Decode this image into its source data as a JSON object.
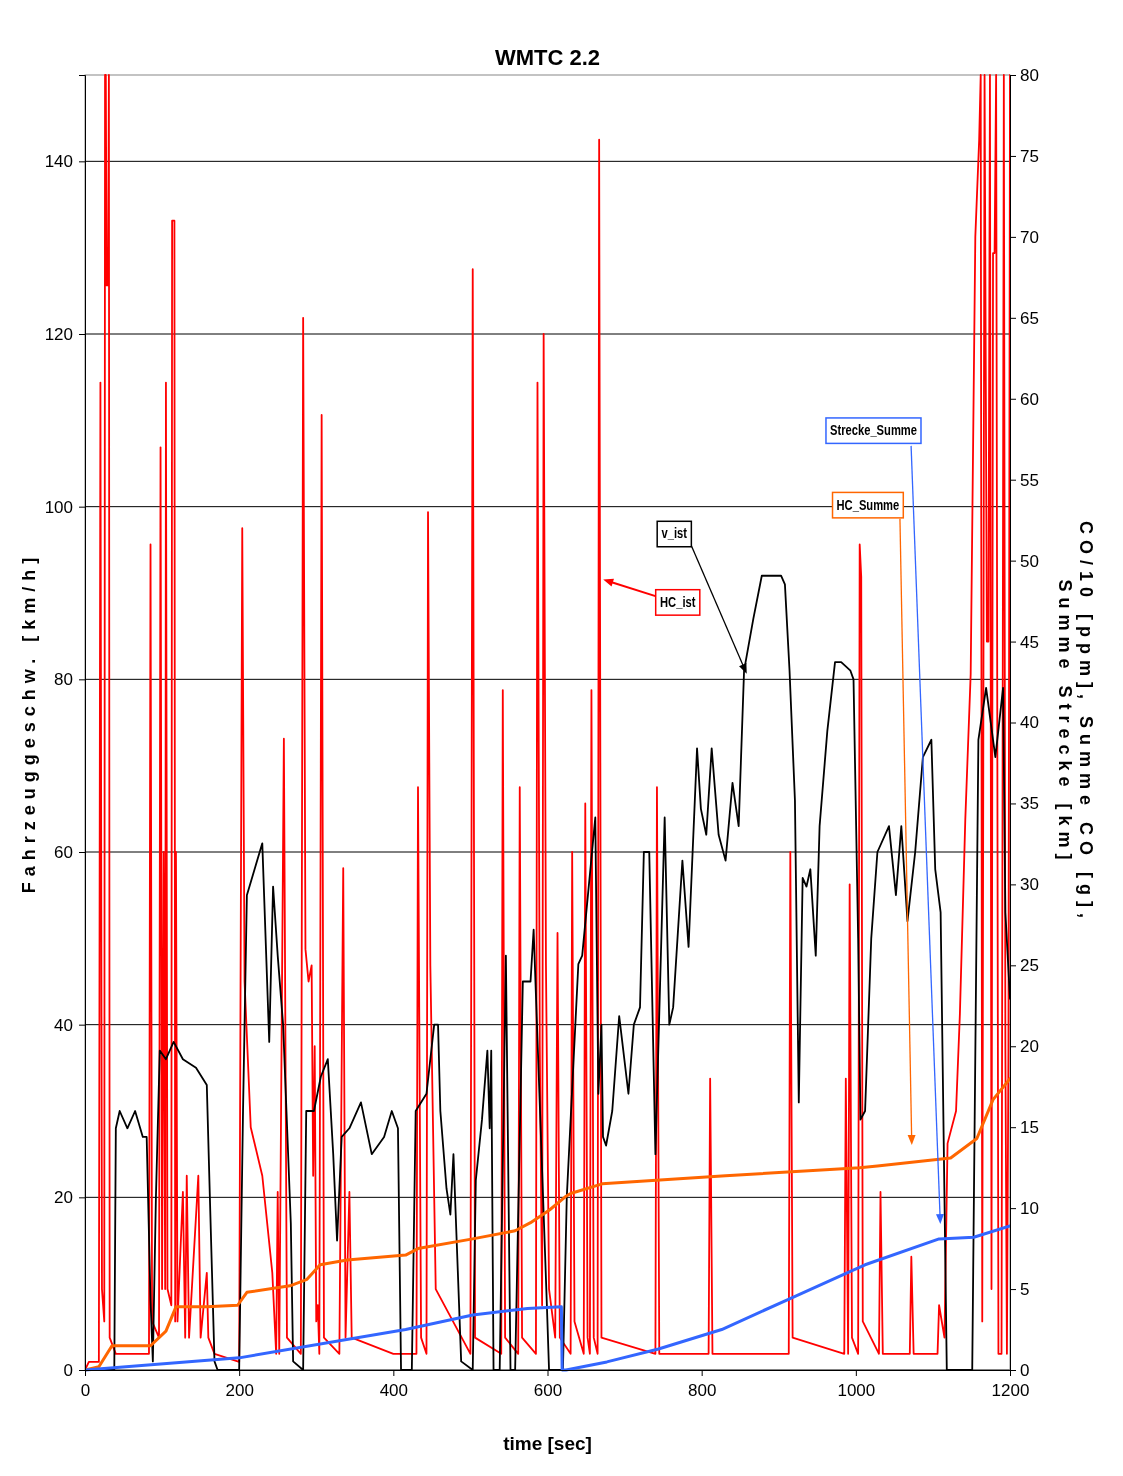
{
  "chart_data": {
    "type": "line",
    "title": "WMTC 2.2",
    "xlabel": "time [sec]",
    "ylabel": "Fahrzeuggeschw. [km/h]",
    "y2label": "CO/10 [ppm], Summe CO [g], Summe Strecke [km]",
    "xlim": [
      0,
      1200
    ],
    "xticks": [
      0,
      200,
      400,
      600,
      800,
      1000,
      1200
    ],
    "ylim": [
      0,
      150
    ],
    "yticks": [
      0,
      20,
      40,
      60,
      80,
      100,
      120,
      140
    ],
    "y2lim": [
      0,
      80
    ],
    "y2ticks": [
      0,
      5,
      10,
      15,
      20,
      25,
      30,
      35,
      40,
      45,
      50,
      55,
      60,
      65,
      70,
      75,
      80
    ],
    "grid": "y",
    "series": [
      {
        "name": "v_ist",
        "color": "#000000",
        "x": [
          0,
          38,
          40,
          45,
          55,
          65,
          75,
          80,
          85,
          88,
          92,
          97,
          105,
          115,
          127,
          144,
          158,
          162,
          168,
          172,
          200,
          205,
          210,
          220,
          230,
          239,
          244,
          250,
          257,
          267,
          270,
          283,
          287,
          297,
          306,
          315,
          322,
          327,
          333,
          343,
          358,
          372,
          388,
          398,
          406,
          410,
          424,
          429,
          443,
          453,
          458,
          461,
          469,
          474,
          478,
          488,
          503,
          507,
          515,
          522,
          525,
          527,
          530,
          538,
          546,
          552,
          558,
          568,
          578,
          582,
          599,
          602,
          620,
          625,
          640,
          645,
          662,
          666,
          670,
          672,
          676,
          684,
          693,
          705,
          712,
          720,
          725,
          732,
          740,
          752,
          758,
          763,
          775,
          783,
          794,
          799,
          806,
          813,
          822,
          831,
          840,
          848,
          855,
          867,
          878,
          903,
          908,
          914,
          921,
          926,
          931,
          936,
          941,
          948,
          953,
          963,
          973,
          981,
          993,
          997,
          1003,
          1006,
          1012,
          1020,
          1028,
          1043,
          1052,
          1059,
          1067,
          1077,
          1087,
          1098,
          1103,
          1110,
          1118,
          1151,
          1159,
          1169,
          1181,
          1191,
          1194,
          1200
        ],
        "values": [
          0,
          0,
          28,
          30,
          28,
          30,
          27,
          27,
          8,
          1,
          20,
          37,
          36,
          38,
          36,
          35,
          33,
          20,
          1,
          0,
          0,
          30,
          55,
          58,
          61,
          38,
          56,
          48,
          40,
          17,
          1,
          0,
          30,
          30,
          34,
          36,
          25,
          15,
          27,
          28,
          31,
          25,
          27,
          30,
          28,
          0,
          0,
          30,
          32,
          40,
          40,
          30,
          21,
          18,
          25,
          1,
          0,
          22,
          29,
          37,
          28,
          37,
          0,
          0,
          48,
          0,
          0,
          45,
          45,
          51,
          8,
          0,
          0,
          20,
          47,
          48,
          64,
          32,
          40,
          27,
          26,
          30,
          41,
          32,
          40,
          42,
          60,
          60,
          25,
          64,
          40,
          42,
          59,
          49,
          72,
          65,
          62,
          72,
          62,
          59,
          68,
          63,
          81,
          87,
          92,
          92,
          91,
          81,
          66,
          31,
          57,
          56,
          58,
          48,
          63,
          74,
          82,
          82,
          81,
          80,
          50,
          29,
          30,
          50,
          60,
          63,
          55,
          63,
          52,
          60,
          71,
          73,
          58,
          53,
          0,
          0,
          73,
          79,
          71,
          79,
          53,
          43
        ]
      },
      {
        "name": "HC_ist",
        "color": "#ff0000",
        "axis": "y2",
        "x": [
          0,
          5,
          18,
          20,
          22,
          25,
          26,
          27,
          28,
          30,
          31,
          32,
          40,
          83,
          85,
          87,
          96,
          98,
          100,
          102,
          104,
          105,
          107,
          112,
          113,
          116,
          117,
          118,
          120,
          127,
          130,
          132,
          135,
          147,
          150,
          158,
          160,
          168,
          200,
          204,
          207,
          215,
          230,
          243,
          248,
          250,
          252,
          258,
          262,
          280,
          283,
          286,
          290,
          294,
          296,
          298,
          300,
          302,
          304,
          307,
          310,
          330,
          335,
          338,
          343,
          346,
          400,
          430,
          432,
          436,
          443,
          445,
          448,
          455,
          500,
          503,
          506,
          540,
          542,
          545,
          562,
          564,
          567,
          585,
          587,
          590,
          593,
          595,
          598,
          602,
          610,
          613,
          616,
          630,
          632,
          635,
          647,
          649,
          652,
          655,
          657,
          660,
          665,
          667,
          670,
          740,
          742,
          745,
          809,
          811,
          814,
          913,
          915,
          918,
          985,
          987,
          990,
          992,
          995,
          1003,
          1005,
          1007,
          1009,
          1030,
          1032,
          1035,
          1070,
          1072,
          1075,
          1106,
          1108,
          1115,
          1119,
          1130,
          1135,
          1142,
          1149,
          1155,
          1160,
          1162,
          1164,
          1167,
          1170,
          1172,
          1174,
          1176,
          1178,
          1180,
          1182,
          1185,
          1189,
          1192,
          1194,
          1196,
          1198,
          1200
        ],
        "values": [
          0,
          0.5,
          0.5,
          61,
          5,
          3,
          80,
          80,
          67,
          67,
          80,
          2,
          1,
          1,
          51,
          3,
          2,
          57,
          5,
          32,
          5,
          61,
          5,
          4,
          71,
          71,
          3,
          32,
          3,
          11,
          2,
          12,
          2,
          12,
          2,
          6,
          2,
          1,
          0.5,
          52,
          24,
          15,
          12,
          6,
          1,
          11,
          1,
          39,
          2,
          1,
          65,
          26,
          24,
          25,
          12,
          20,
          3,
          4,
          1,
          59,
          2,
          1,
          31,
          2,
          11,
          2,
          1,
          1,
          36,
          2,
          1,
          53,
          25,
          5,
          1,
          68,
          2,
          1,
          42,
          2,
          1,
          36,
          2,
          1,
          61,
          20,
          4,
          64,
          25,
          5,
          2,
          27,
          2,
          1,
          32,
          3,
          1,
          35,
          2,
          1,
          42,
          2,
          1,
          76,
          2,
          1,
          36,
          1,
          1,
          18,
          1,
          1,
          32,
          2,
          1,
          18,
          1,
          30,
          2,
          1,
          51,
          49,
          3,
          1,
          11,
          1,
          1,
          7,
          1,
          1,
          4,
          2,
          14,
          16,
          22,
          34,
          43,
          70,
          76,
          80,
          3,
          80,
          45,
          45,
          80,
          5,
          69,
          69,
          80,
          1,
          1,
          80,
          20,
          1,
          20,
          80
        ]
      },
      {
        "name": "HC_Summe",
        "color": "#ff6600",
        "axis": "y2",
        "x": [
          0,
          18,
          35,
          85,
          105,
          118,
          158,
          198,
          210,
          266,
          288,
          305,
          340,
          416,
          432,
          503,
          558,
          578,
          603,
          623,
          630,
          671,
          831,
          1005,
          1028,
          1123,
          1157,
          1178,
          1200
        ],
        "values": [
          0,
          0.2,
          1.5,
          1.5,
          2.4,
          3.9,
          3.9,
          4,
          4.8,
          5.2,
          5.6,
          6.5,
          6.8,
          7.1,
          7.5,
          8.1,
          8.6,
          9.1,
          9.9,
          10.7,
          10.9,
          11.5,
          12,
          12.5,
          12.6,
          13.1,
          14.3,
          16.7,
          18
        ]
      },
      {
        "name": "Strecke_Summe",
        "color": "#3366ff",
        "axis": "y2",
        "x": [
          0,
          200,
          416,
          503,
          574,
          618,
          619,
          624,
          677,
          744,
          826,
          914,
          1012,
          1108,
          1153,
          1200
        ],
        "values": [
          0,
          0.75,
          2.5,
          3.4,
          3.8,
          3.9,
          0,
          0,
          0.5,
          1.3,
          2.5,
          4.4,
          6.5,
          8.1,
          8.2,
          8.9
        ]
      }
    ]
  }
}
